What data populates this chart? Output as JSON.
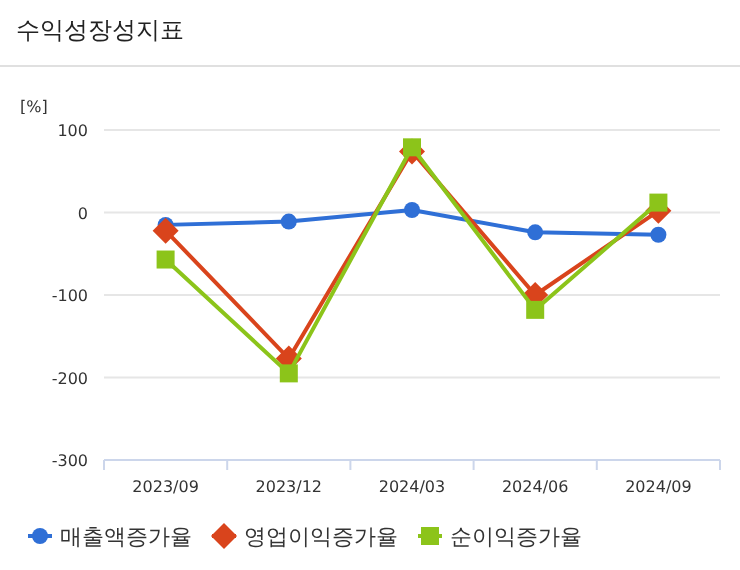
{
  "chart_data": {
    "type": "line",
    "title": "수익성장성지표",
    "ylabel": "[%]",
    "categories": [
      "2023/09",
      "2023/12",
      "2024/03",
      "2024/06",
      "2024/09"
    ],
    "series": [
      {
        "name": "매출액증가율",
        "color": "#2f6fd6",
        "marker": "circle",
        "values": [
          -15,
          -11,
          3,
          -24,
          -27
        ]
      },
      {
        "name": "영업이익증가율",
        "color": "#d9441c",
        "marker": "diamond",
        "values": [
          -22,
          -177,
          74,
          -100,
          2
        ]
      },
      {
        "name": "순이익증가율",
        "color": "#8cc41a",
        "marker": "square",
        "values": [
          -57,
          -195,
          79,
          -118,
          12
        ]
      }
    ],
    "ylim": [
      -300,
      100
    ],
    "yticks": [
      100,
      0,
      -100,
      -200,
      -300
    ],
    "grid": "y",
    "legend": "bottom"
  }
}
